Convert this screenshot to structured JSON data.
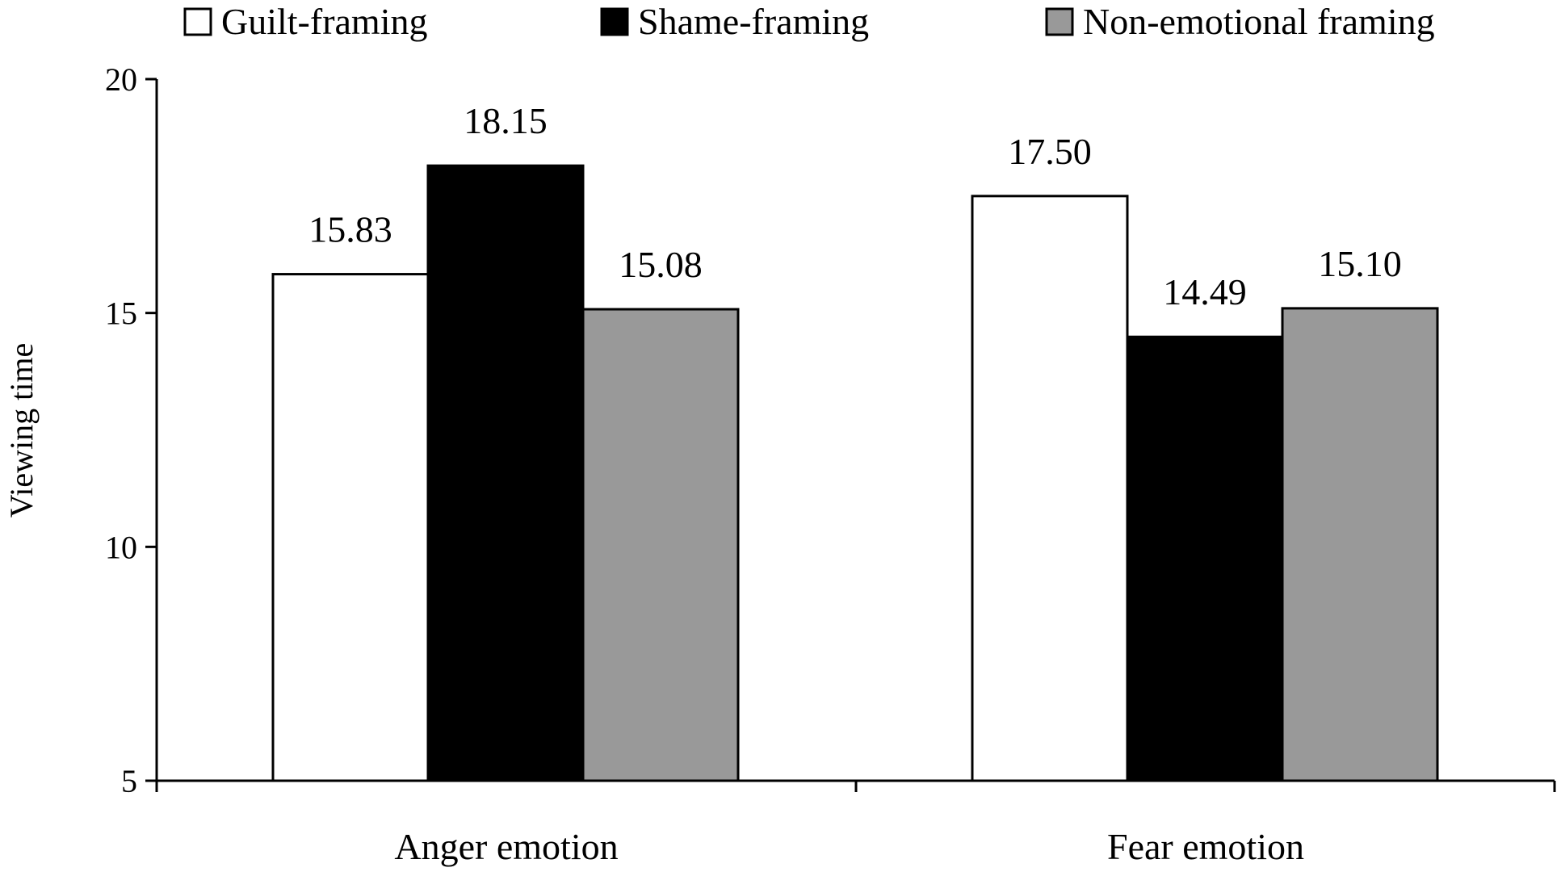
{
  "chart_data": {
    "type": "bar",
    "title": "",
    "xlabel": "",
    "ylabel": "Viewing time",
    "ylim": [
      5,
      20
    ],
    "yticks": [
      5,
      10,
      15,
      20
    ],
    "grid": false,
    "legend_position": "top",
    "categories": [
      "Anger emotion",
      "Fear emotion"
    ],
    "series": [
      {
        "name": "Guilt-framing",
        "color": "#ffffff",
        "values": [
          15.83,
          17.5
        ],
        "labels": [
          "15.83",
          "17.50"
        ]
      },
      {
        "name": "Shame-framing",
        "color": "#000000",
        "values": [
          18.15,
          14.49
        ],
        "labels": [
          "18.15",
          "14.49"
        ]
      },
      {
        "name": "Non-emotional framing",
        "color": "#999999",
        "values": [
          15.08,
          15.1
        ],
        "labels": [
          "15.08",
          "15.10"
        ]
      }
    ]
  }
}
